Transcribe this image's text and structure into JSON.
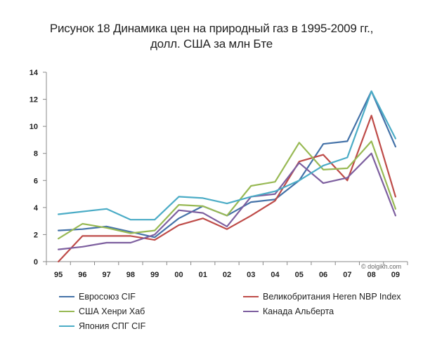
{
  "title_line1": "Рисунок 18 Динамика цен на природный газ в 1995-2009 гг.,",
  "title_line2": "долл. США за млн Бте",
  "watermark": "© dolgikh.com",
  "chart_data": {
    "type": "line",
    "title": "Рисунок 18 Динамика цен на природный газ в 1995-2009 гг., долл. США за млн Бте",
    "xlabel": "",
    "ylabel": "",
    "ylim": [
      0,
      14
    ],
    "yticks": [
      0,
      2,
      4,
      6,
      8,
      10,
      12,
      14
    ],
    "grid": false,
    "legend_position": "bottom",
    "categories": [
      "95",
      "96",
      "97",
      "98",
      "99",
      "00",
      "01",
      "02",
      "03",
      "04",
      "05",
      "06",
      "07",
      "08",
      "09"
    ],
    "series": [
      {
        "name": "Евросоюз CIF",
        "color": "#4472a8",
        "values": [
          2.3,
          2.4,
          2.6,
          2.2,
          1.8,
          3.2,
          4.1,
          3.4,
          4.4,
          4.6,
          6.0,
          8.7,
          8.9,
          12.6,
          8.5
        ]
      },
      {
        "name": "Великобритания Heren NBP Index",
        "color": "#be4b48",
        "values": [
          0.0,
          1.9,
          1.9,
          1.9,
          1.6,
          2.7,
          3.2,
          2.4,
          3.4,
          4.5,
          7.4,
          7.9,
          6.0,
          10.8,
          4.8
        ]
      },
      {
        "name": "США Хенри Хаб",
        "color": "#98b954",
        "values": [
          1.7,
          2.8,
          2.5,
          2.1,
          2.3,
          4.2,
          4.1,
          3.4,
          5.6,
          5.9,
          8.8,
          6.8,
          6.9,
          8.9,
          3.9
        ]
      },
      {
        "name": "Канада Альберта",
        "color": "#7d5f9f",
        "values": [
          0.9,
          1.1,
          1.4,
          1.4,
          2.0,
          3.8,
          3.6,
          2.6,
          4.8,
          5.0,
          7.3,
          5.8,
          6.2,
          8.0,
          3.4
        ]
      },
      {
        "name": "Япония СПГ CIF",
        "color": "#4bacc6",
        "values": [
          3.5,
          3.7,
          3.9,
          3.1,
          3.1,
          4.8,
          4.7,
          4.3,
          4.8,
          5.2,
          6.0,
          7.1,
          7.7,
          12.6,
          9.1
        ]
      }
    ]
  }
}
